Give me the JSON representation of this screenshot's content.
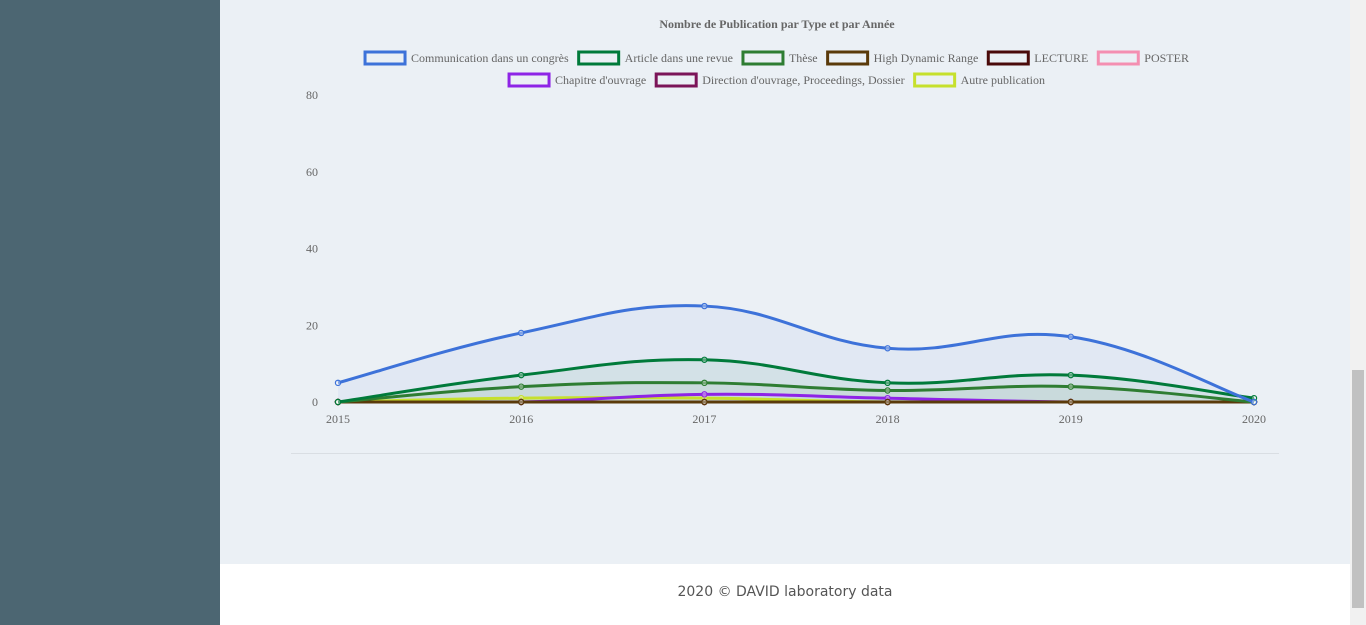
{
  "footer": {
    "text": "2020 © DAVID laboratory data"
  },
  "chart_data": {
    "type": "line",
    "title": "Nombre de Publication par Type et par Année",
    "categories": [
      "2015",
      "2016",
      "2017",
      "2018",
      "2019",
      "2020"
    ],
    "ylim": [
      0,
      80
    ],
    "yticks": [
      "0",
      "20",
      "40",
      "60",
      "80"
    ],
    "legend_position": "top",
    "grid": false,
    "series": [
      {
        "name": "Communication dans un congrès",
        "color": "#3d72d9",
        "values": [
          5,
          18,
          25,
          14,
          17,
          0
        ],
        "fill": true
      },
      {
        "name": "Article dans une revue",
        "color": "#007a3a",
        "values": [
          0,
          7,
          11,
          5,
          7,
          1
        ],
        "fill": true
      },
      {
        "name": "Thèse",
        "color": "#2e7d32",
        "values": [
          0,
          4,
          5,
          3,
          4,
          0
        ],
        "fill": true
      },
      {
        "name": "High Dynamic Range",
        "color": "#5a3a0a",
        "values": [
          0,
          0,
          0,
          0,
          0,
          0
        ],
        "fill": false
      },
      {
        "name": "LECTURE",
        "color": "#4a0a0a",
        "values": [
          0,
          0,
          0,
          0,
          0,
          0
        ],
        "fill": false
      },
      {
        "name": "POSTER",
        "color": "#f48fb1",
        "values": [
          0,
          0,
          0,
          0,
          0,
          0
        ],
        "fill": false
      },
      {
        "name": "Chapitre d'ouvrage",
        "color": "#8e24e6",
        "values": [
          0,
          0,
          2,
          1,
          0,
          0
        ],
        "fill": false
      },
      {
        "name": "Direction d'ouvrage, Proceedings, Dossier",
        "color": "#7b1458",
        "values": [
          0,
          0,
          0,
          0,
          0,
          0
        ],
        "fill": false
      },
      {
        "name": "Autre publication",
        "color": "#c6e02c",
        "values": [
          0,
          1,
          1,
          0,
          0,
          0
        ],
        "fill": false
      }
    ]
  }
}
